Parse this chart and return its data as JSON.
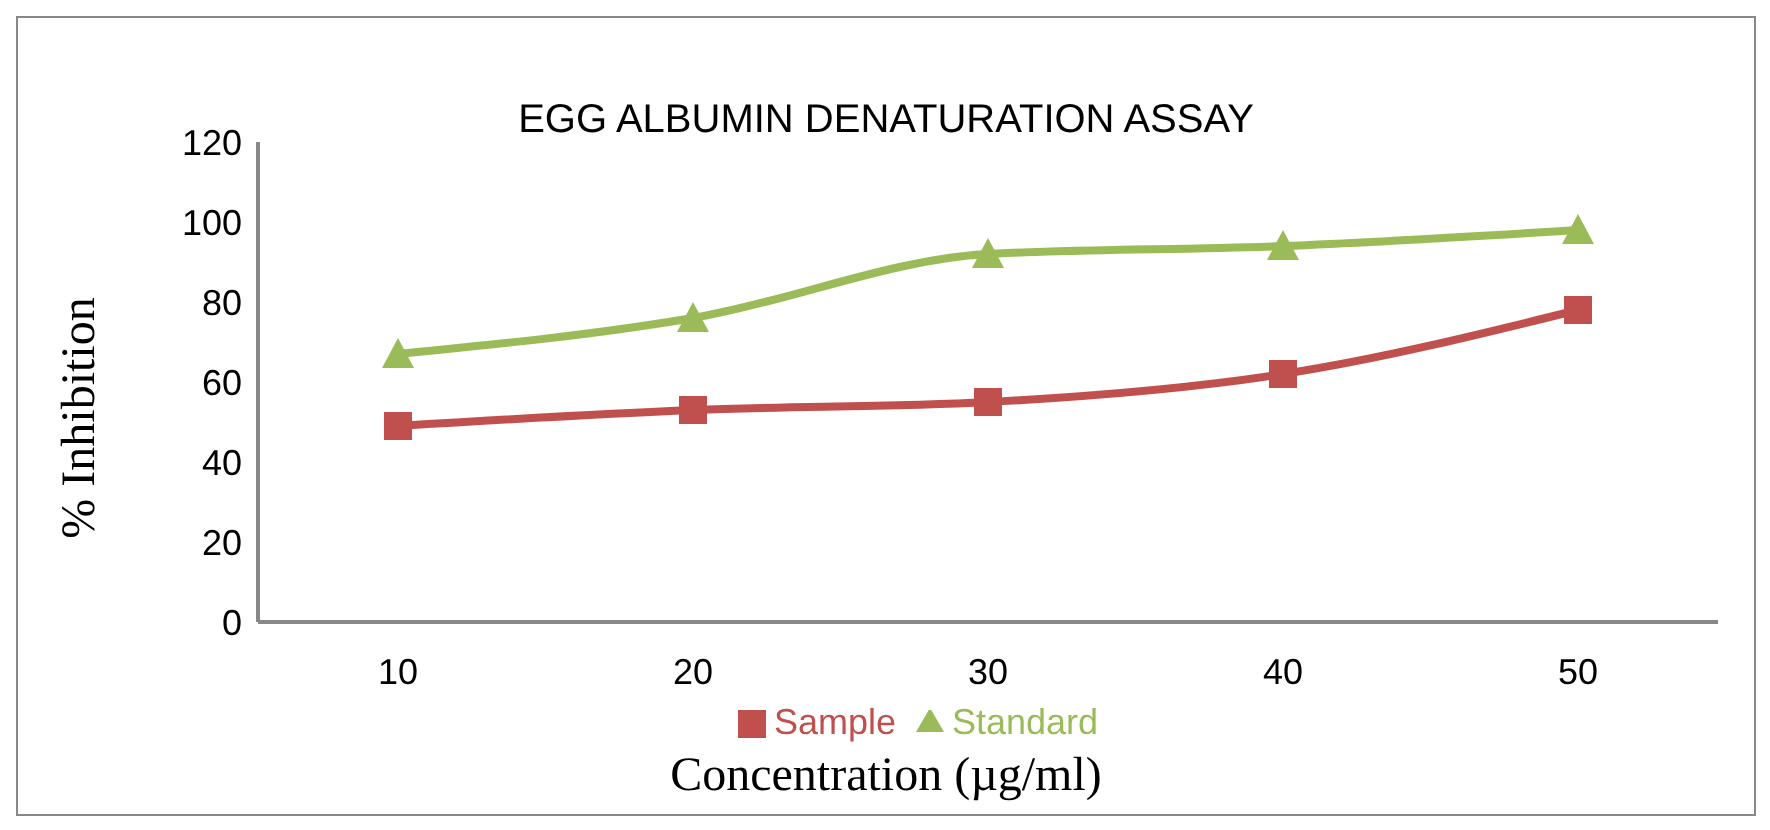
{
  "chart_data": {
    "type": "line",
    "title": "EGG ALBUMIN DENATURATION ASSAY",
    "xlabel": "Concentration (µg/ml)",
    "ylabel": "% Inhibition",
    "categories": [
      "10",
      "20",
      "30",
      "40",
      "50"
    ],
    "series": [
      {
        "name": "Sample",
        "color": "#c0504d",
        "values": [
          49,
          53,
          55,
          62,
          78
        ],
        "marker": "square"
      },
      {
        "name": "Standard",
        "color": "#9bbb59",
        "values": [
          67,
          76,
          92,
          94,
          98
        ],
        "marker": "triangle"
      }
    ],
    "ylim": [
      0,
      120
    ],
    "yticks": [
      0,
      20,
      40,
      60,
      80,
      100,
      120
    ],
    "grid": false,
    "legend": "bottom"
  }
}
